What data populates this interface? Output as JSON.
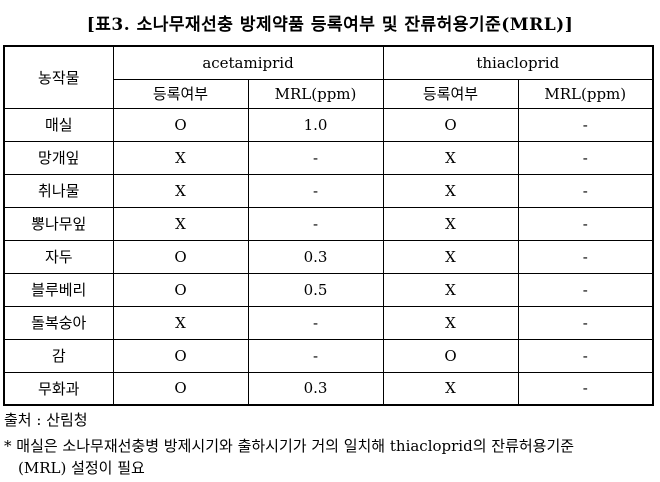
{
  "title": "[표3. 소나무재선충 방제약품 등록여부 및 잔류허용기준(MRL)]",
  "table": {
    "corner_header": "농작물",
    "group_headers": [
      "acetamiprid",
      "thiacloprid"
    ],
    "sub_headers": [
      "등록여부",
      "MRL(ppm)",
      "등록여부",
      "MRL(ppm)"
    ],
    "rows": [
      {
        "crop": "매실",
        "cells": [
          "O",
          "1.0",
          "O",
          "-"
        ]
      },
      {
        "crop": "망개잎",
        "cells": [
          "X",
          "-",
          "X",
          "-"
        ]
      },
      {
        "crop": "취나물",
        "cells": [
          "X",
          "-",
          "X",
          "-"
        ]
      },
      {
        "crop": "뽕나무잎",
        "cells": [
          "X",
          "-",
          "X",
          "-"
        ]
      },
      {
        "crop": "자두",
        "cells": [
          "O",
          "0.3",
          "X",
          "-"
        ]
      },
      {
        "crop": "블루베리",
        "cells": [
          "O",
          "0.5",
          "X",
          "-"
        ]
      },
      {
        "crop": "돌복숭아",
        "cells": [
          "X",
          "-",
          "X",
          "-"
        ]
      },
      {
        "crop": "감",
        "cells": [
          "O",
          "-",
          "O",
          "-"
        ]
      },
      {
        "crop": "무화과",
        "cells": [
          "O",
          "0.3",
          "X",
          "-"
        ]
      }
    ]
  },
  "footer": {
    "source": "출처 : 산림청",
    "note_line1": "* 매실은 소나무재선충병 방제시기와 출하시기가 거의 일치해 thiacloprid의 잔류허용기준",
    "note_line2": "(MRL) 설정이 필요"
  },
  "colors": {
    "text": "#000000",
    "border": "#000000",
    "background": "#ffffff"
  }
}
